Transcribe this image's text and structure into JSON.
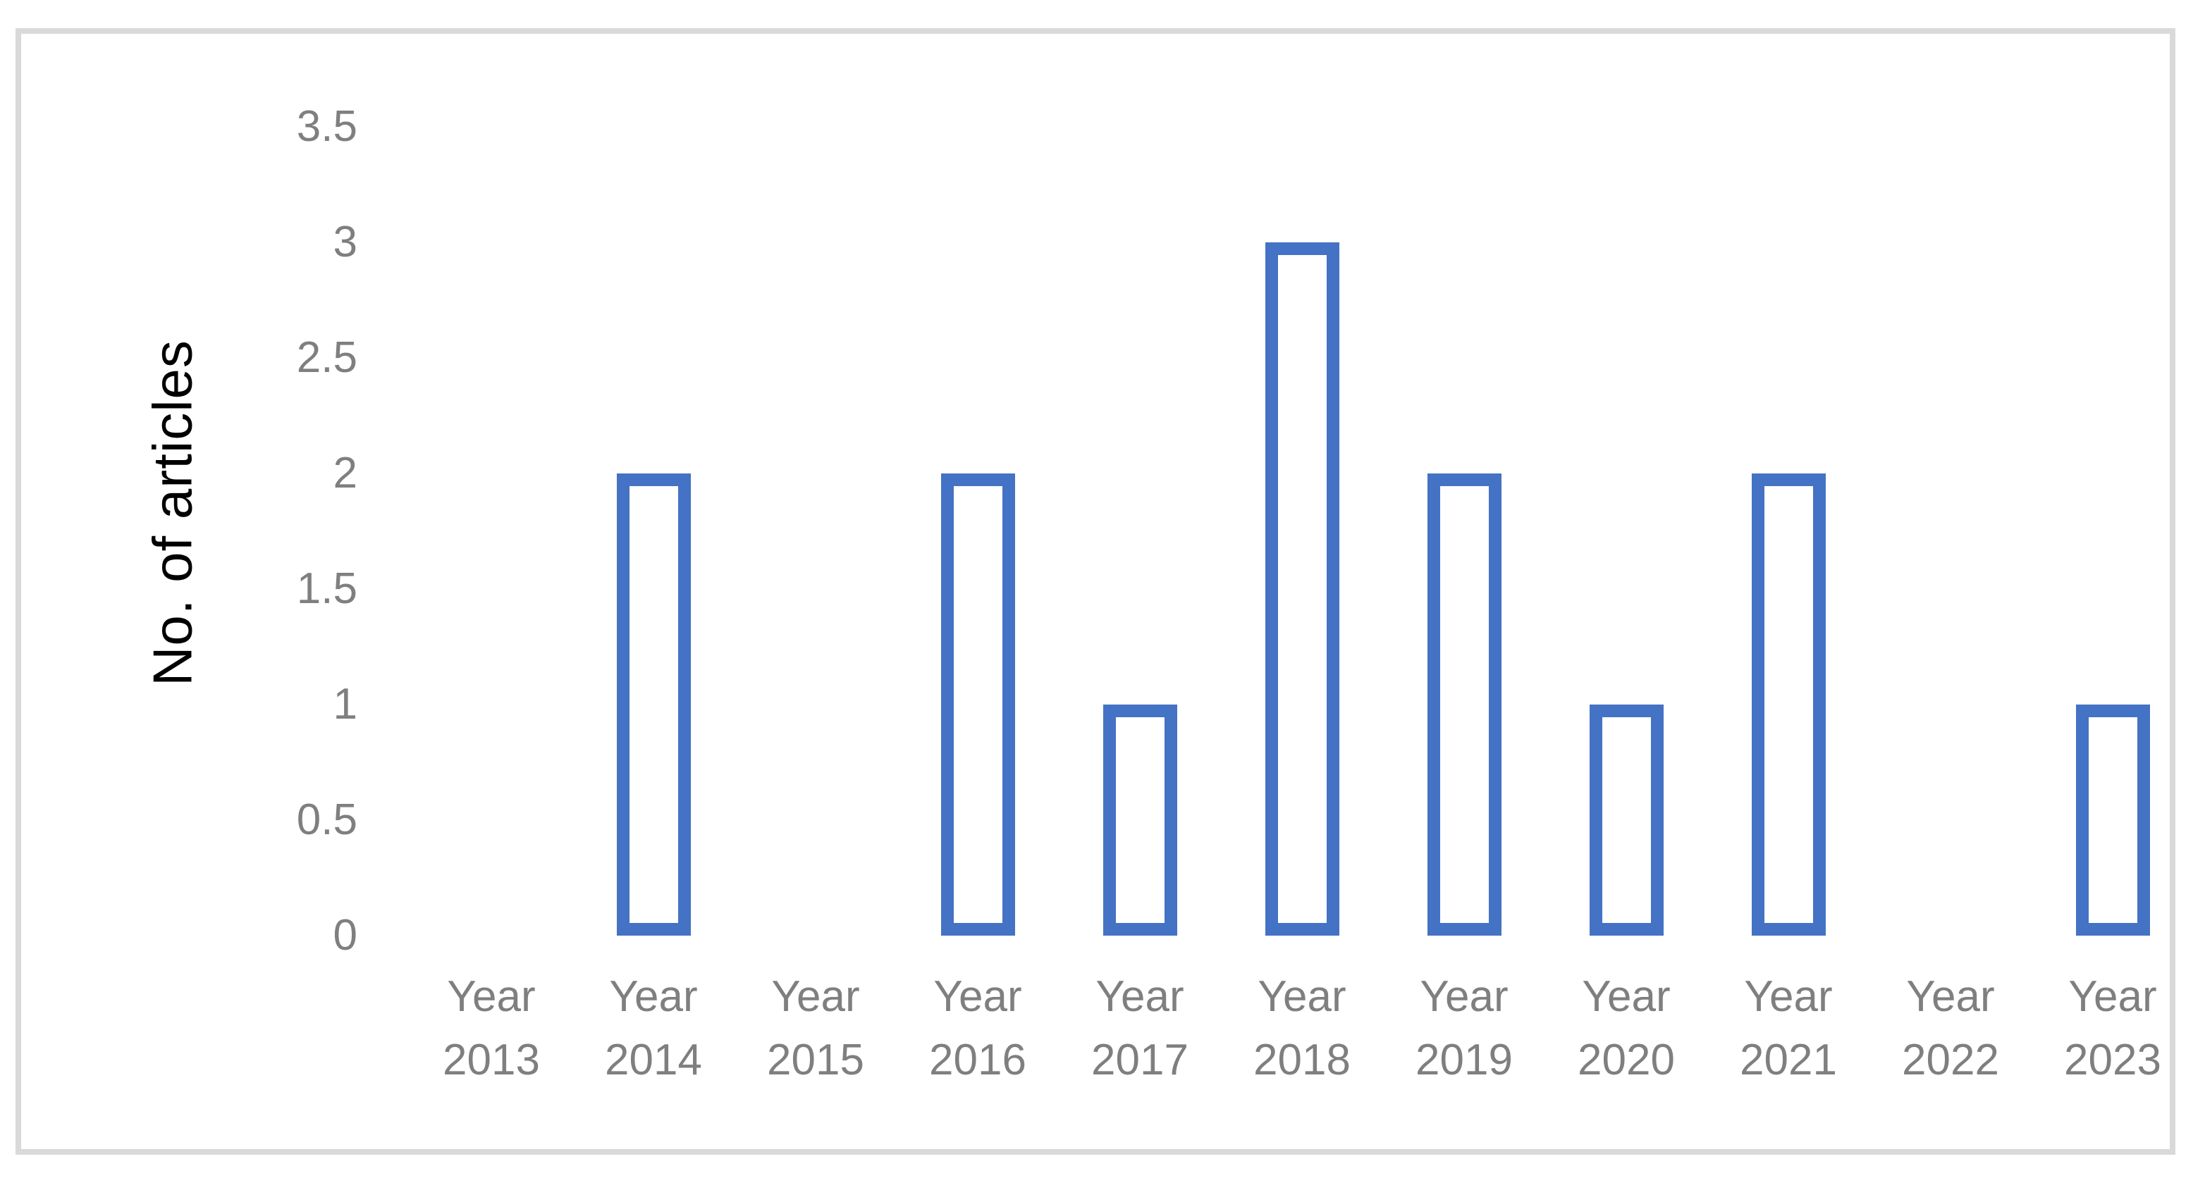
{
  "chart_data": {
    "type": "bar",
    "categories": [
      "Year 2013",
      "Year 2014",
      "Year 2015",
      "Year 2016",
      "Year 2017",
      "Year 2018",
      "Year 2019",
      "Year 2020",
      "Year 2021",
      "Year 2022",
      "Year 2023"
    ],
    "values": [
      0,
      2,
      0,
      2,
      1,
      3,
      2,
      1,
      2,
      0,
      1
    ],
    "title": "",
    "xlabel": "",
    "ylabel": "No. of articles",
    "yticks": [
      0,
      0.5,
      1,
      1.5,
      2,
      2.5,
      3,
      3.5
    ],
    "ylim": [
      0,
      3.5
    ],
    "grid": false,
    "legend": "none",
    "x_tick_lines": 2,
    "colors": {
      "bar_border": "#4472C4",
      "bar_fill": "#FFFFFF",
      "tick_label": "#7F7F7F",
      "axis_title": "#000000",
      "frame_border": "#D9D9D9",
      "background": "#FFFFFF"
    }
  }
}
